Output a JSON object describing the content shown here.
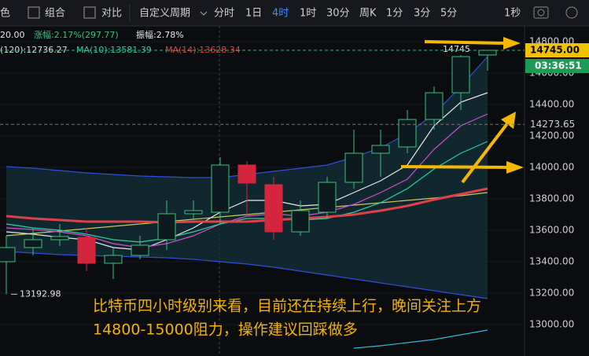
{
  "toolbar": {
    "items": [
      "色",
      "组合",
      "对比",
      "自定义周期",
      "分时",
      "1日",
      "4时",
      "1时",
      "30分",
      "周K",
      "1分",
      "3分",
      "5分",
      "1秒"
    ],
    "active_index": 6
  },
  "chart_data": {
    "type": "candlestick",
    "info": [
      "20.00",
      "涨幅:2.17%(297.77)",
      "振幅:2.78%"
    ],
    "legend": [
      "(120):12736.27",
      "MA(10):13581.39",
      "MA(14):13628.34"
    ],
    "categories": [
      null,
      null,
      null,
      null,
      null,
      null,
      null,
      null,
      null,
      null,
      null,
      null,
      null,
      null,
      null,
      null,
      null,
      null,
      null
    ],
    "open": [
      13400,
      13490,
      13540,
      13555,
      13390,
      13440,
      13540,
      13705,
      13715,
      14015,
      13890,
      13590,
      13715,
      13905,
      14090,
      14130,
      14305,
      14475,
      14715
    ],
    "high": [
      13565,
      13615,
      13640,
      13615,
      13490,
      13565,
      13790,
      13790,
      14065,
      14040,
      13940,
      13790,
      13940,
      14240,
      14240,
      14365,
      14515,
      14715,
      14745
    ],
    "low": [
      13192.98,
      13440,
      13500,
      13340,
      13290,
      13415,
      13475,
      13665,
      13640,
      13700,
      13540,
      13565,
      13675,
      13865,
      13940,
      14090,
      14240,
      14365,
      14615
    ],
    "close": [
      13490,
      13540,
      13560,
      13390,
      13440,
      13505,
      13705,
      13725,
      14015,
      13900,
      13590,
      13725,
      13905,
      14090,
      14140,
      14305,
      14475,
      14705,
      14745
    ],
    "up_color": "#3cc27a",
    "down_color": "#d3263d",
    "lines": [
      {
        "color": "#2f4fd8",
        "values": [
          14005,
          13995,
          13980,
          13965,
          13955,
          13945,
          13940,
          13935,
          13935,
          13955,
          13975,
          13995,
          14015,
          14065,
          14125,
          14215,
          14340,
          14515,
          14705
        ]
      },
      {
        "color": "#2f4fd8",
        "values": [
          13465,
          13455,
          13445,
          13440,
          13435,
          13430,
          13425,
          13415,
          13400,
          13385,
          13365,
          13340,
          13315,
          13290,
          13265,
          13240,
          13215,
          13190,
          13165
        ]
      },
      {
        "color": "#c8c85a",
        "values": [
          13565,
          13580,
          13595,
          13610,
          13625,
          13640,
          13655,
          13670,
          13685,
          13700,
          13715,
          13730,
          13745,
          13760,
          13775,
          13790,
          13805,
          13820,
          13840
        ]
      },
      {
        "color": "#e8e8e8",
        "values": [
          13590,
          13575,
          13555,
          13540,
          13490,
          13475,
          13540,
          13615,
          13715,
          13790,
          13790,
          13755,
          13765,
          13840,
          13915,
          14015,
          14265,
          14415,
          14475
        ]
      },
      {
        "color": "#d04fd0",
        "values": [
          13615,
          13605,
          13590,
          13565,
          13515,
          13490,
          13515,
          13565,
          13640,
          13690,
          13705,
          13690,
          13715,
          13765,
          13840,
          13925,
          14115,
          14265,
          14340
        ]
      },
      {
        "color": "#2fcfa0",
        "values": [
          13640,
          13615,
          13600,
          13575,
          13540,
          13525,
          13550,
          13590,
          13640,
          13675,
          13675,
          13665,
          13675,
          13715,
          13775,
          13865,
          13990,
          14090,
          14165
        ]
      },
      {
        "color": "#e0404a",
        "width": 3,
        "values": [
          13690,
          13675,
          13665,
          13655,
          13655,
          13655,
          13650,
          13655,
          13655,
          13655,
          13665,
          13675,
          13685,
          13700,
          13725,
          13755,
          13795,
          13830,
          13865
        ]
      },
      {
        "color": "#2fb8d8",
        "values": [
          null,
          null,
          null,
          null,
          null,
          null,
          null,
          null,
          null,
          null,
          null,
          null,
          null,
          12850,
          12865,
          12885,
          12905,
          12935,
          12965
        ]
      }
    ],
    "ylim": [
      12800,
      14890
    ],
    "yticks": [
      {
        "value": 14800,
        "label": "14800.00"
      },
      {
        "value": 14600,
        "label": "14600.00"
      },
      {
        "value": 14400,
        "label": "14400.00"
      },
      {
        "value": 14200,
        "label": "14200.00"
      },
      {
        "value": 14000,
        "label": "14000.00"
      },
      {
        "value": 13800,
        "label": "13800.00"
      },
      {
        "value": 13600,
        "label": "13600.00"
      },
      {
        "value": 13400,
        "label": "13400.00"
      },
      {
        "value": 13200,
        "label": "13200.00"
      },
      {
        "value": 13000,
        "label": "13000.00"
      }
    ],
    "price_lines": [
      {
        "value": 14745,
        "label": "14745.00"
      },
      14273.65
    ],
    "countdown": "03:36:51",
    "grid": true,
    "annotations": [
      "比特币四小时级别来看，目前还在持续上行，晚间关注上方",
      "14800-15000阻力，操作建议回踩做多"
    ]
  }
}
